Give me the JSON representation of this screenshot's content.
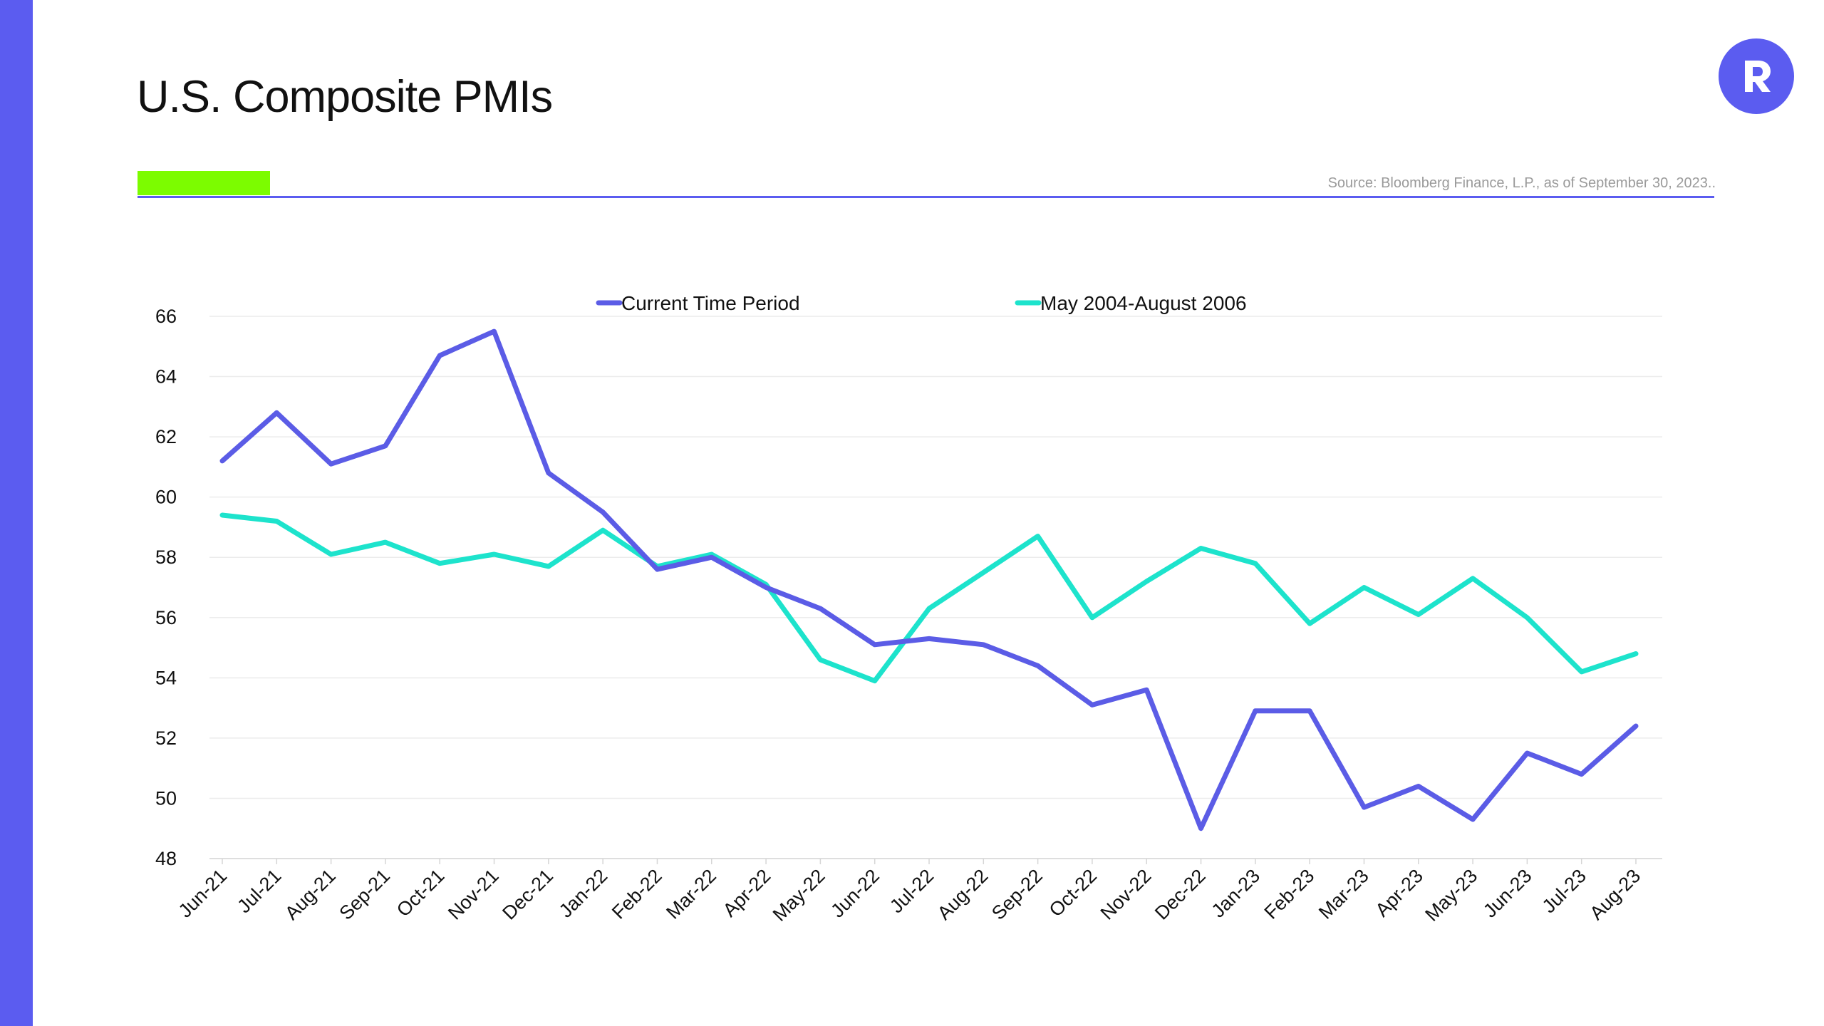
{
  "slide": {
    "title": "U.S. Composite PMIs",
    "source": "Source: Bloomberg Finance, L.P., as of September 30, 2023..",
    "colors": {
      "sidebar": "#5B5CF0",
      "accent": "#7CFC00",
      "rule": "#5B5CF0",
      "logo": "#5B5CF0"
    },
    "logo_icon": "r-brand-icon"
  },
  "chart_data": {
    "type": "line",
    "title": "",
    "xlabel": "",
    "ylabel": "",
    "ylim": [
      48,
      66
    ],
    "yticks": [
      66,
      64,
      62,
      60,
      58,
      56,
      54,
      52,
      50,
      48
    ],
    "grid": true,
    "legend_position": "top",
    "categories": [
      "Jun-21",
      "Jul-21",
      "Aug-21",
      "Sep-21",
      "Oct-21",
      "Nov-21",
      "Dec-21",
      "Jan-22",
      "Feb-22",
      "Mar-22",
      "Apr-22",
      "May-22",
      "Jun-22",
      "Jul-22",
      "Aug-22",
      "Sep-22",
      "Oct-22",
      "Nov-22",
      "Dec-22",
      "Jan-23",
      "Feb-23",
      "Mar-23",
      "Apr-23",
      "May-23",
      "Jun-23",
      "Jul-23",
      "Aug-23"
    ],
    "series": [
      {
        "name": "Current Time Period",
        "color": "#5B5CE6",
        "values": [
          61.2,
          62.8,
          61.1,
          61.7,
          64.7,
          65.5,
          60.8,
          59.5,
          57.6,
          58.0,
          57.0,
          56.3,
          55.1,
          55.3,
          55.1,
          54.4,
          53.1,
          53.6,
          49.0,
          52.9,
          52.9,
          49.7,
          50.4,
          49.3,
          51.5,
          50.8,
          52.4
        ]
      },
      {
        "name": "May 2004-August 2006",
        "color": "#1DE3CC",
        "values": [
          59.4,
          59.2,
          58.1,
          58.5,
          57.8,
          58.1,
          57.7,
          58.9,
          57.7,
          58.1,
          57.1,
          54.6,
          53.9,
          56.3,
          57.5,
          58.7,
          56.0,
          57.2,
          58.3,
          57.8,
          55.8,
          57.0,
          56.1,
          57.3,
          56.0,
          54.2,
          54.8
        ]
      }
    ]
  }
}
